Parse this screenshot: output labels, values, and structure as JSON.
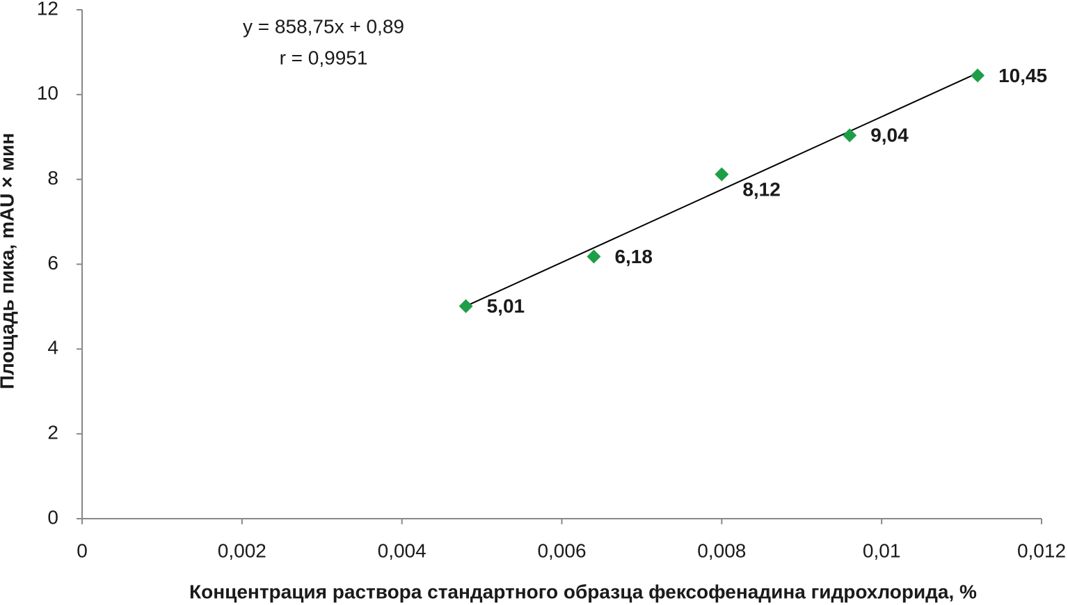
{
  "chart_data": {
    "type": "scatter",
    "x_label": "Концентрация раствора стандартного образца фексофенадина гидрохлорида, %",
    "y_label": "Площадь пика, mAU × мин",
    "series": [
      {
        "color": "#1e9e48",
        "x": [
          0.0048,
          0.0064,
          0.008,
          0.0096,
          0.0112
        ],
        "values": [
          5.01,
          6.18,
          8.12,
          9.04,
          10.45
        ],
        "value_labels": [
          "5,01",
          "6,18",
          "8,12",
          "9,04",
          "10,45"
        ]
      }
    ],
    "trendline": {
      "slope": 858.75,
      "intercept": 0.89,
      "color": "#000000",
      "label": "y = 858,75x  + 0,89",
      "r": 0.9951,
      "r_label": "r = 0,9951"
    },
    "xlim": [
      0,
      0.012
    ],
    "xticks": [
      0,
      {
        "value": 0.002,
        "label": "0,002"
      },
      {
        "value": 0.004,
        "label": "0,004"
      },
      {
        "value": 0.006,
        "label": "0,006"
      },
      {
        "value": 0.008,
        "label": "0,008"
      },
      {
        "value": 0.01,
        "label": "0,01"
      },
      {
        "value": 0.012,
        "label": "0,012"
      }
    ],
    "ylim": [
      0,
      12
    ],
    "yticks": [
      0,
      2,
      4,
      6,
      8,
      10,
      12
    ],
    "grid": false
  }
}
